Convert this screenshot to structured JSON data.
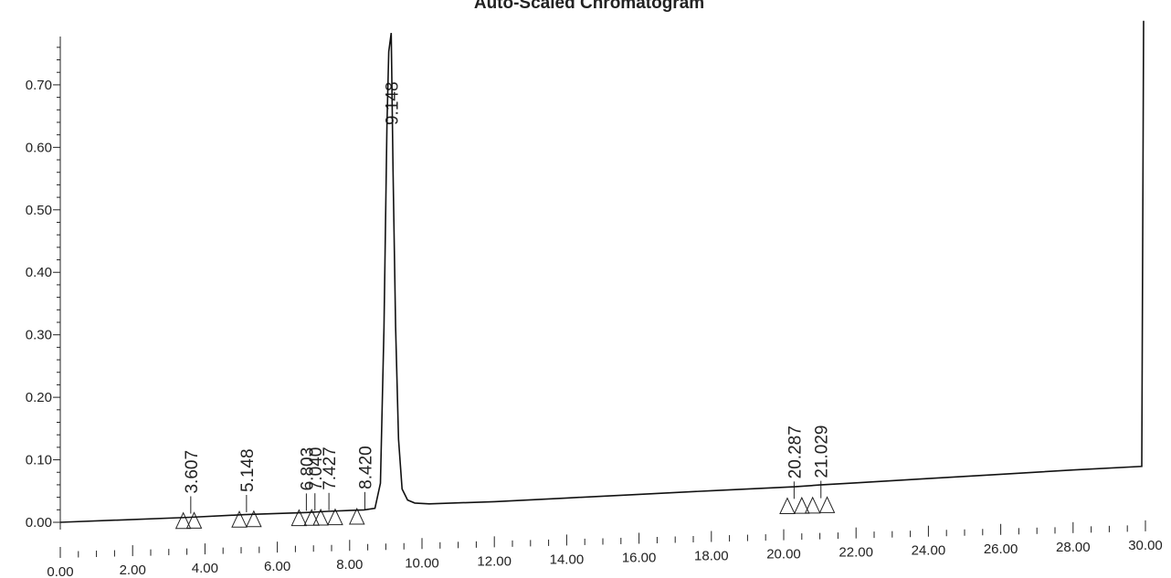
{
  "chart_data": {
    "type": "line",
    "title": "Auto-Scaled Chromatogram",
    "xlim": [
      0,
      30
    ],
    "ylim": [
      0,
      0.77
    ],
    "x_ticks": [
      "0.00",
      "2.00",
      "4.00",
      "6.00",
      "8.00",
      "10.00",
      "12.00",
      "14.00",
      "16.00",
      "18.00",
      "20.00",
      "22.00",
      "24.00",
      "26.00",
      "28.00",
      "30.00"
    ],
    "y_ticks": [
      "0.00",
      "0.10",
      "0.20",
      "0.30",
      "0.40",
      "0.50",
      "0.60",
      "0.70"
    ],
    "series": [
      {
        "x": [
          0,
          3.6,
          5.1,
          6.8,
          7.4,
          8.4,
          8.7,
          8.85,
          8.95,
          9.03,
          9.08,
          9.148,
          9.2,
          9.27,
          9.35,
          9.45,
          9.6,
          9.8,
          10.2,
          12,
          14,
          16,
          18,
          20.3,
          21,
          22,
          24,
          26,
          28,
          29.9,
          29.95
        ],
        "y": [
          0.0,
          0.003,
          0.005,
          0.006,
          0.007,
          0.008,
          0.01,
          0.05,
          0.3,
          0.62,
          0.74,
          0.77,
          0.55,
          0.3,
          0.12,
          0.04,
          0.022,
          0.017,
          0.015,
          0.016,
          0.019,
          0.022,
          0.025,
          0.028,
          0.03,
          0.032,
          0.036,
          0.04,
          0.044,
          0.047,
          0.76
        ]
      }
    ],
    "peaks": [
      {
        "label": "3.607",
        "x": 3.607
      },
      {
        "label": "5.148",
        "x": 5.148
      },
      {
        "label": "6.803",
        "x": 6.803
      },
      {
        "label": "7.040",
        "x": 7.04
      },
      {
        "label": "7.427",
        "x": 7.427
      },
      {
        "label": "8.420",
        "x": 8.42
      },
      {
        "label": "9.148",
        "x": 9.148
      },
      {
        "label": "20.287",
        "x": 20.287
      },
      {
        "label": "21.029",
        "x": 21.029
      }
    ],
    "markers": [
      3.4,
      3.7,
      4.95,
      5.35,
      6.6,
      6.95,
      7.2,
      7.6,
      8.2,
      20.1,
      20.5,
      20.8,
      21.2
    ]
  }
}
